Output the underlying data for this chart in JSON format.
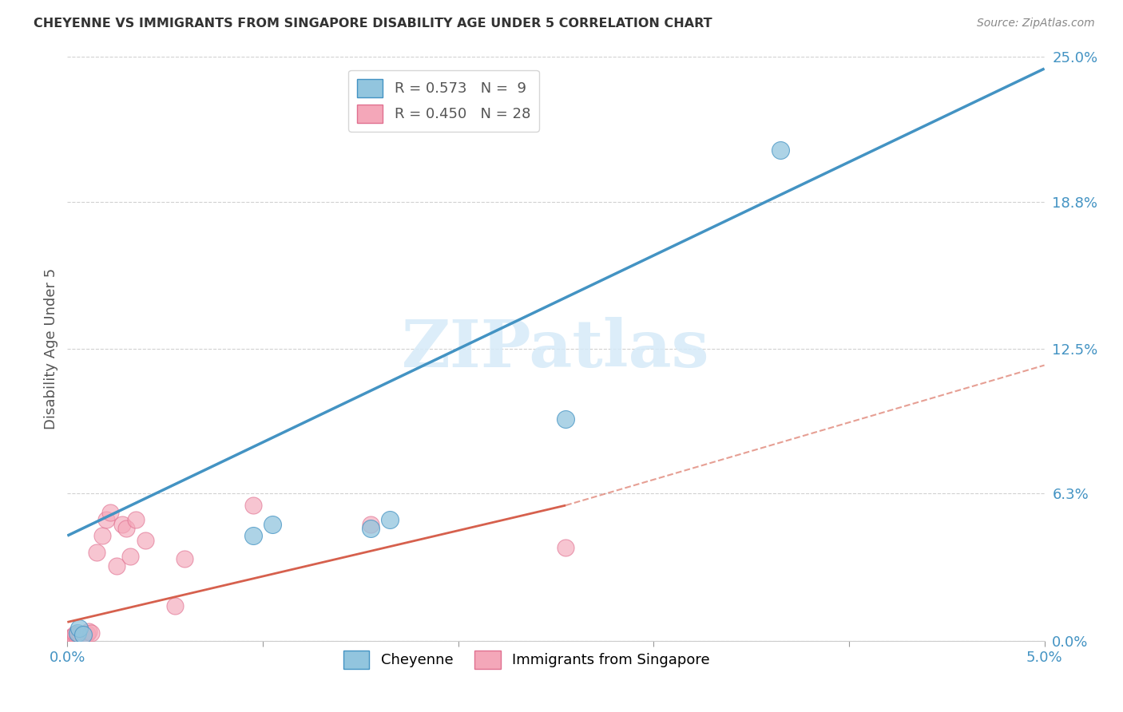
{
  "title": "CHEYENNE VS IMMIGRANTS FROM SINGAPORE DISABILITY AGE UNDER 5 CORRELATION CHART",
  "source": "Source: ZipAtlas.com",
  "ylabel": "Disability Age Under 5",
  "ytick_values": [
    0.0,
    6.3,
    12.5,
    18.8,
    25.0
  ],
  "xlim": [
    0.0,
    5.0
  ],
  "ylim": [
    0.0,
    25.0
  ],
  "legend_r1": "R = 0.573",
  "legend_n1": "N =  9",
  "legend_r2": "R = 0.450",
  "legend_n2": "N = 28",
  "cheyenne_color": "#92c5de",
  "singapore_color": "#f4a7b9",
  "blue_line_color": "#4393c3",
  "pink_line_color": "#d6604d",
  "watermark_color": "#d6eaf8",
  "watermark": "ZIPatlas",
  "cheyenne_points_x": [
    0.05,
    0.06,
    0.08,
    0.95,
    1.05,
    1.55,
    1.65,
    2.55,
    3.65
  ],
  "cheyenne_points_y": [
    0.35,
    0.55,
    0.25,
    4.5,
    5.0,
    4.8,
    5.2,
    9.5,
    21.0
  ],
  "singapore_points_x": [
    0.02,
    0.03,
    0.04,
    0.04,
    0.05,
    0.05,
    0.06,
    0.07,
    0.08,
    0.09,
    0.1,
    0.11,
    0.12,
    0.15,
    0.18,
    0.2,
    0.22,
    0.25,
    0.28,
    0.3,
    0.32,
    0.35,
    0.4,
    0.55,
    0.6,
    0.95,
    1.55,
    2.55
  ],
  "singapore_points_y": [
    0.15,
    0.2,
    0.15,
    0.3,
    0.1,
    0.25,
    0.25,
    0.2,
    0.2,
    0.25,
    0.3,
    0.4,
    0.35,
    3.8,
    4.5,
    5.2,
    5.5,
    3.2,
    5.0,
    4.8,
    3.6,
    5.2,
    4.3,
    1.5,
    3.5,
    5.8,
    5.0,
    4.0
  ],
  "blue_line_x0": 0.0,
  "blue_line_y0": 4.5,
  "blue_line_x1": 5.0,
  "blue_line_y1": 24.5,
  "pink_solid_x0": 0.0,
  "pink_solid_y0": 0.8,
  "pink_solid_x1": 2.55,
  "pink_solid_y1": 5.8,
  "pink_dashed_x0": 2.55,
  "pink_dashed_y0": 5.8,
  "pink_dashed_x1": 5.0,
  "pink_dashed_y1": 11.8
}
